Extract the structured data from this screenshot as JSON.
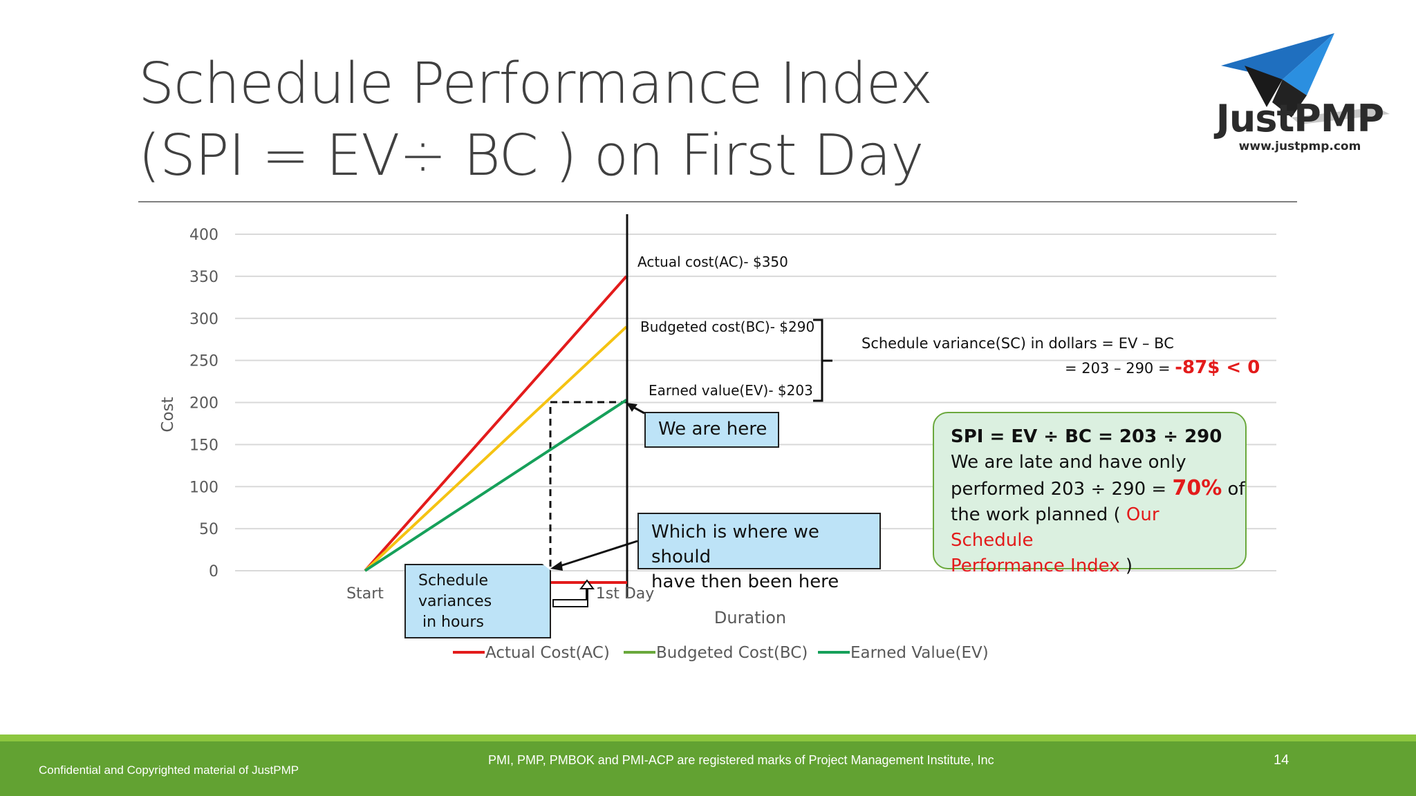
{
  "title": {
    "line1": "Schedule Performance Index",
    "line2": "(SPI = EV÷ BC ) on First Day"
  },
  "logo": {
    "name": "JustPMP",
    "url": "www.justpmp.com"
  },
  "chart_data": {
    "type": "line",
    "title": "",
    "xlabel": "Duration",
    "ylabel": "Cost",
    "categories": [
      "Start",
      "1st Day"
    ],
    "ylim": [
      0,
      400
    ],
    "yticks": [
      0,
      50,
      100,
      150,
      200,
      250,
      300,
      350,
      400
    ],
    "grid": true,
    "legend_position": "bottom",
    "series": [
      {
        "name": "Actual Cost(AC)",
        "values": [
          0,
          350
        ],
        "color": "#e31b1b",
        "legend_color": "#e31b1b"
      },
      {
        "name": "Budgeted Cost(BC)",
        "values": [
          0,
          290
        ],
        "color": "#f5c312",
        "legend_color": "#6aa83c"
      },
      {
        "name": "Earned Value(EV)",
        "values": [
          0,
          203
        ],
        "color": "#16a05a",
        "legend_color": "#16a05a"
      }
    ],
    "annotations": {
      "ac": "Actual cost(AC)- $350",
      "bc": "Budgeted cost(BC)- $290",
      "ev": "Earned value(EV)- $203"
    }
  },
  "callouts": {
    "here": "We are here",
    "should_line1": "Which is where we should",
    "should_line2": "have then been here",
    "variance_line1": "Schedule",
    "variance_line2": "variances",
    "variance_line3": "in hours"
  },
  "schedule_variance": {
    "line1": "Schedule variance(SC) in dollars = EV – BC",
    "line2": "= 203 – 290 =",
    "value": "-87$ < 0"
  },
  "spi_box": {
    "formula": "SPI = EV ÷ BC = 203 ÷ 290",
    "line2": "We are late and have only",
    "line3a": "performed  203 ÷ 290 =",
    "percent": "70%",
    "line3b": "of",
    "line4a": "the work planned  (",
    "red1": "Our Schedule",
    "red2": "Performance Index",
    "close": ")"
  },
  "footer": {
    "left": "Confidential and Copyrighted material of JustPMP",
    "center": "PMI, PMP, PMBOK and PMI-ACP are registered  marks of Project  Management Institute, Inc",
    "page": "14"
  },
  "colors": {
    "footer_band": "#62a232",
    "footer_top": "#8cc63f",
    "callout_fill": "#bde3f7",
    "spi_fill": "#dbf0e0",
    "highlight_red": "#e31b1b"
  }
}
